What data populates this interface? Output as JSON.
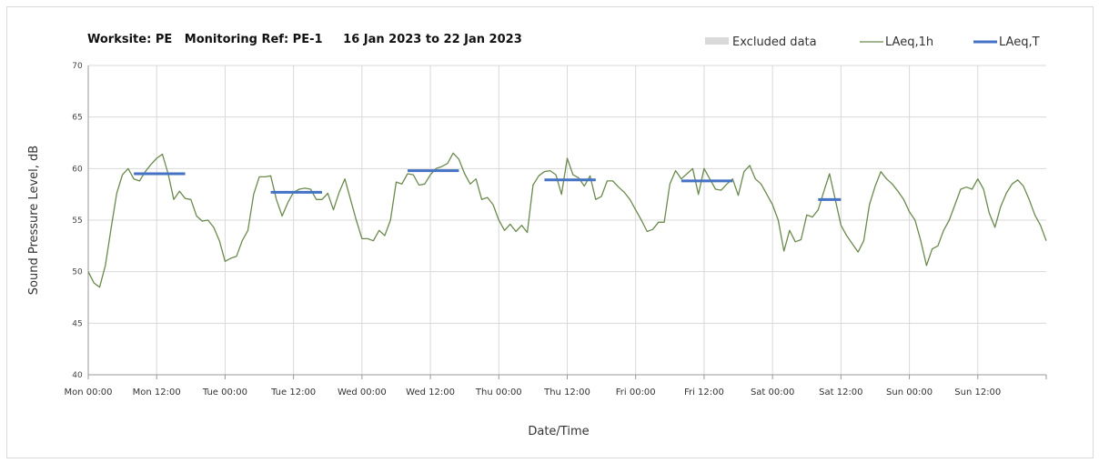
{
  "chart_data": {
    "type": "line",
    "title": "Worksite: PE   Monitoring Ref: PE-1     16 Jan 2023 to 22 Jan 2023",
    "xlabel": "Date/Time",
    "ylabel": "Sound Pressure Level, dB",
    "ylim": [
      40,
      70
    ],
    "yticks": [
      40,
      45,
      50,
      55,
      60,
      65,
      70
    ],
    "xlim_hours": [
      0,
      168
    ],
    "xticks": [
      {
        "hour": 0,
        "label": "Mon 00:00"
      },
      {
        "hour": 12,
        "label": "Mon 12:00"
      },
      {
        "hour": 24,
        "label": "Tue 00:00"
      },
      {
        "hour": 36,
        "label": "Tue 12:00"
      },
      {
        "hour": 48,
        "label": "Wed 00:00"
      },
      {
        "hour": 60,
        "label": "Wed 12:00"
      },
      {
        "hour": 72,
        "label": "Thu 00:00"
      },
      {
        "hour": 84,
        "label": "Thu 12:00"
      },
      {
        "hour": 96,
        "label": "Fri 00:00"
      },
      {
        "hour": 108,
        "label": "Fri 12:00"
      },
      {
        "hour": 120,
        "label": "Sat 00:00"
      },
      {
        "hour": 132,
        "label": "Sat 12:00"
      },
      {
        "hour": 144,
        "label": "Sun 00:00"
      },
      {
        "hour": 156,
        "label": "Sun 12:00"
      }
    ],
    "grid": true,
    "legend_position": "top-right",
    "legend": [
      {
        "name": "Excluded data",
        "kind": "box",
        "color": "#d9d9d9"
      },
      {
        "name": "LAeq,1h",
        "kind": "line",
        "color": "#6b8a4e"
      },
      {
        "name": "LAeq,T",
        "kind": "line",
        "color": "#4472c4"
      }
    ],
    "series": [
      {
        "name": "LAeq,1h",
        "color": "#6b8a4e",
        "x": [
          0,
          1,
          2,
          3,
          4,
          5,
          6,
          7,
          8,
          9,
          10,
          11,
          12,
          13,
          14,
          15,
          16,
          17,
          18,
          19,
          20,
          21,
          22,
          23,
          24,
          25,
          26,
          27,
          28,
          29,
          30,
          31,
          32,
          33,
          34,
          35,
          36,
          37,
          38,
          39,
          40,
          41,
          42,
          43,
          44,
          45,
          46,
          47,
          48,
          49,
          50,
          51,
          52,
          53,
          54,
          55,
          56,
          57,
          58,
          59,
          60,
          61,
          62,
          63,
          64,
          65,
          66,
          67,
          68,
          69,
          70,
          71,
          72,
          73,
          74,
          75,
          76,
          77,
          78,
          79,
          80,
          81,
          82,
          83,
          84,
          85,
          86,
          87,
          88,
          89,
          90,
          91,
          92,
          93,
          94,
          95,
          96,
          97,
          98,
          99,
          100,
          101,
          102,
          103,
          104,
          105,
          106,
          107,
          108,
          109,
          110,
          111,
          112,
          113,
          114,
          115,
          116,
          117,
          118,
          119,
          120,
          121,
          122,
          123,
          124,
          125,
          126,
          127,
          128,
          129,
          130,
          131,
          132,
          133,
          134,
          135,
          136,
          137,
          138,
          139,
          140,
          141,
          142,
          143,
          144,
          145,
          146,
          147,
          148,
          149,
          150,
          151,
          152,
          153,
          154,
          155,
          156,
          157,
          158,
          159,
          160,
          161,
          162,
          163,
          164,
          165,
          166,
          167,
          168
        ],
        "y": [
          50.0,
          48.9,
          48.5,
          50.6,
          54.2,
          57.6,
          59.4,
          60.0,
          59.0,
          58.8,
          59.7,
          60.4,
          61.0,
          61.4,
          59.5,
          57.0,
          57.8,
          57.1,
          57.0,
          55.4,
          54.9,
          55.0,
          54.3,
          53.0,
          51.0,
          51.3,
          51.5,
          53.0,
          54.0,
          57.5,
          59.2,
          59.2,
          59.3,
          57.0,
          55.4,
          56.7,
          57.7,
          58.0,
          58.1,
          58.0,
          57.0,
          57.0,
          57.6,
          56.0,
          57.7,
          59.0,
          57.0,
          55.0,
          53.2,
          53.2,
          53.0,
          54.0,
          53.5,
          55.0,
          58.7,
          58.5,
          59.5,
          59.4,
          58.4,
          58.5,
          59.4,
          60.0,
          60.2,
          60.5,
          61.5,
          60.9,
          59.5,
          58.5,
          59.0,
          57.0,
          57.2,
          56.5,
          55.0,
          54.0,
          54.6,
          53.9,
          54.5,
          53.8,
          58.4,
          59.3,
          59.7,
          59.8,
          59.4,
          57.5,
          61.0,
          59.4,
          59.1,
          58.3,
          59.3,
          57.0,
          57.3,
          58.8,
          58.8,
          58.2,
          57.7,
          57.0,
          56.0,
          55.0,
          53.9,
          54.1,
          54.8,
          54.8,
          58.5,
          59.8,
          59.0,
          59.5,
          60.0,
          57.5,
          60.0,
          59.0,
          58.0,
          57.9,
          58.5,
          59.0,
          57.4,
          59.7,
          60.3,
          59.0,
          58.5,
          57.5,
          56.5,
          55.0,
          52.0,
          54.0,
          52.9,
          53.1,
          55.5,
          55.3,
          56.0,
          57.8,
          59.5,
          57.0,
          54.5,
          53.5,
          52.7,
          51.9,
          53.0,
          56.5,
          58.3,
          59.7,
          59.0,
          58.5,
          57.8,
          57.0,
          55.8,
          55.0,
          53.0,
          50.6,
          52.2,
          52.5,
          54.0,
          55.0,
          56.5,
          58.0,
          58.2,
          58.0,
          59.0,
          58.0,
          55.7,
          54.3,
          56.3,
          57.6,
          58.5,
          58.9,
          58.3,
          57.0,
          55.5,
          54.5,
          53.0
        ]
      },
      {
        "name": "LAeq,T",
        "color": "#4472c4",
        "segments": [
          {
            "x0": 8,
            "x1": 17,
            "y": 59.5
          },
          {
            "x0": 32,
            "x1": 41,
            "y": 57.7
          },
          {
            "x0": 56,
            "x1": 65,
            "y": 59.8
          },
          {
            "x0": 80,
            "x1": 89,
            "y": 58.9
          },
          {
            "x0": 104,
            "x1": 113,
            "y": 58.8
          },
          {
            "x0": 128,
            "x1": 132,
            "y": 57.0
          }
        ]
      }
    ]
  }
}
